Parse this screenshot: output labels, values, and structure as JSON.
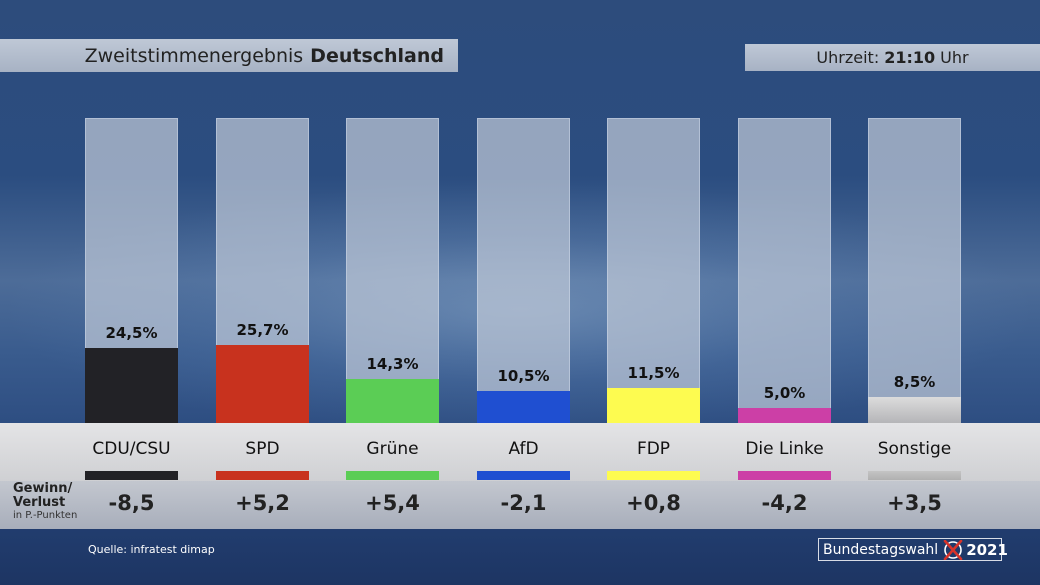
{
  "header": {
    "title_prefix": "Zweitstimmenergebnis",
    "title_bold": "Deutschland",
    "time_prefix": "Uhrzeit:",
    "time_value": "21:10",
    "time_suffix": "Uhr"
  },
  "change_label": {
    "line1": "Gewinn/",
    "line2": "Verlust",
    "line3": "in P.-Punkten"
  },
  "footer": {
    "source": "Quelle:  infratest dimap",
    "logo_text": "Bundestagswahl",
    "logo_year": "2021"
  },
  "chart_data": {
    "type": "bar",
    "title": "Zweitstimmenergebnis Deutschland",
    "categories": [
      "CDU/CSU",
      "SPD",
      "Grüne",
      "AfD",
      "FDP",
      "Die Linke",
      "Sonstige"
    ],
    "values": [
      24.5,
      25.7,
      14.3,
      10.5,
      11.5,
      5.0,
      8.5
    ],
    "value_labels": [
      "24,5%",
      "25,7%",
      "14,3%",
      "10,5%",
      "11,5%",
      "5,0%",
      "8,5%"
    ],
    "changes": [
      -8.5,
      5.2,
      5.4,
      -2.1,
      0.8,
      -4.2,
      3.5
    ],
    "change_labels": [
      "-8,5",
      "+5,2",
      "+5,4",
      "-2,1",
      "+0,8",
      "-4,2",
      "+3,5"
    ],
    "colors": [
      "#222226",
      "#c8321e",
      "#5bcd55",
      "#1f4fd1",
      "#fdfb50",
      "#cc3fa6",
      "#c8c8c8"
    ],
    "unit": "%",
    "ylim": [
      0,
      100
    ],
    "grid": false,
    "xlabel": "",
    "ylabel": ""
  }
}
